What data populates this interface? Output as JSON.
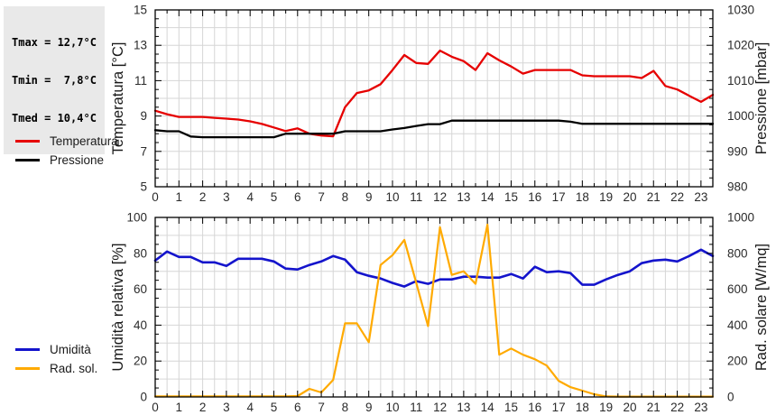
{
  "summary_box": {
    "lines": [
      "Tmax = 12,7°C",
      "Tmin =  7,8°C",
      "Tmed = 10,4°C"
    ]
  },
  "legend_top": {
    "items": [
      {
        "label": "Temperatura",
        "color": "#e60000"
      },
      {
        "label": "Pressione",
        "color": "#000000"
      }
    ]
  },
  "legend_bottom": {
    "items": [
      {
        "label": "Umidità",
        "color": "#1414cc"
      },
      {
        "label": "Rad. sol.",
        "color": "#ffaa00"
      }
    ]
  },
  "colors": {
    "grid": "#d6d6d6",
    "border": "#000000",
    "tick_label": "#2b2b2b",
    "axis_title": "#1a1a1a"
  },
  "chart_data": [
    {
      "type": "line",
      "title": "",
      "x_start": 0,
      "x_step": 0.5,
      "x_axis": {
        "min": 0,
        "max": 23.5,
        "minor_step": 0.5,
        "tick_labels": [
          0,
          1,
          2,
          3,
          4,
          5,
          6,
          7,
          8,
          9,
          10,
          11,
          12,
          13,
          14,
          15,
          16,
          17,
          18,
          19,
          20,
          21,
          22,
          23
        ]
      },
      "left_axis": {
        "label": "Temperatura [°C]",
        "min": 5,
        "max": 15,
        "minor_step": 0.5,
        "grid_step": 1,
        "tick_labels": [
          5,
          7,
          9,
          11,
          13,
          15
        ]
      },
      "right_axis": {
        "label": "Pressione [mbar]",
        "min": 980,
        "max": 1030,
        "minor_step": 2.5,
        "tick_labels": [
          980,
          990,
          1000,
          1010,
          1020,
          1030
        ]
      },
      "series": [
        {
          "name": "Temperatura",
          "axis": "left",
          "color": "#e60000",
          "width": 2.3,
          "values": [
            9.3,
            9.1,
            8.95,
            8.95,
            8.95,
            8.9,
            8.85,
            8.8,
            8.7,
            8.55,
            8.35,
            8.15,
            8.3,
            8.0,
            7.9,
            7.85,
            9.5,
            10.3,
            10.45,
            10.8,
            11.6,
            12.45,
            12.0,
            11.95,
            12.7,
            12.35,
            12.1,
            11.6,
            12.55,
            12.15,
            11.8,
            11.4,
            11.6,
            11.6,
            11.6,
            11.6,
            11.3,
            11.25,
            11.25,
            11.25,
            11.25,
            11.15,
            11.55,
            10.7,
            10.5,
            10.15,
            9.8,
            10.2
          ]
        },
        {
          "name": "Pressione",
          "axis": "right",
          "color": "#000000",
          "width": 2.3,
          "values": [
            996,
            995.7,
            995.7,
            994.2,
            994,
            994,
            994,
            994,
            994,
            994,
            994,
            995,
            995,
            995,
            995,
            995,
            995.7,
            995.7,
            995.7,
            995.7,
            996.2,
            996.6,
            997.2,
            997.7,
            997.7,
            998.7,
            998.7,
            998.7,
            998.7,
            998.7,
            998.7,
            998.7,
            998.7,
            998.7,
            998.7,
            998.4,
            997.8,
            997.8,
            997.8,
            997.8,
            997.8,
            997.8,
            997.8,
            997.8,
            997.8,
            997.8,
            997.8,
            997.8
          ]
        }
      ]
    },
    {
      "type": "line",
      "title": "",
      "x_start": 0,
      "x_step": 0.5,
      "x_axis": {
        "min": 0,
        "max": 23.5,
        "minor_step": 0.5,
        "tick_labels": [
          0,
          1,
          2,
          3,
          4,
          5,
          6,
          7,
          8,
          9,
          10,
          11,
          12,
          13,
          14,
          15,
          16,
          17,
          18,
          19,
          20,
          21,
          22,
          23
        ]
      },
      "left_axis": {
        "label": "Umidità relativa [%]",
        "min": 0,
        "max": 100,
        "minor_step": 5,
        "grid_step": 10,
        "tick_labels": [
          0,
          20,
          40,
          60,
          80,
          100
        ]
      },
      "right_axis": {
        "label": "Rad. solare [W/mq]",
        "min": 0,
        "max": 1000,
        "minor_step": 50,
        "tick_labels": [
          0,
          200,
          400,
          600,
          800,
          1000
        ]
      },
      "series": [
        {
          "name": "Umidità",
          "axis": "left",
          "color": "#1414cc",
          "width": 2.6,
          "values": [
            76,
            81,
            78,
            78,
            75,
            75,
            73,
            77,
            77,
            77,
            75.5,
            71.5,
            71,
            73.5,
            75.5,
            78.5,
            76.5,
            69.5,
            67.5,
            66,
            63.5,
            61.5,
            64.5,
            63,
            65.5,
            65.5,
            67,
            67,
            66.5,
            66.5,
            68.5,
            66,
            72.5,
            69.5,
            70,
            69,
            62.5,
            62.5,
            65.5,
            68,
            70,
            74.5,
            76,
            76.5,
            75.5,
            78.5,
            82,
            78.5
          ]
        },
        {
          "name": "Rad. sol.",
          "axis": "right",
          "color": "#ffaa00",
          "width": 2.2,
          "values": [
            3,
            3,
            3,
            3,
            3,
            3,
            3,
            3,
            3,
            3,
            3,
            3,
            5,
            45,
            25,
            95,
            410,
            410,
            305,
            735,
            790,
            875,
            635,
            395,
            945,
            680,
            700,
            630,
            960,
            235,
            270,
            235,
            210,
            175,
            90,
            55,
            35,
            15,
            3,
            2,
            2,
            2,
            2,
            2,
            2,
            2,
            2,
            2
          ]
        }
      ]
    }
  ]
}
